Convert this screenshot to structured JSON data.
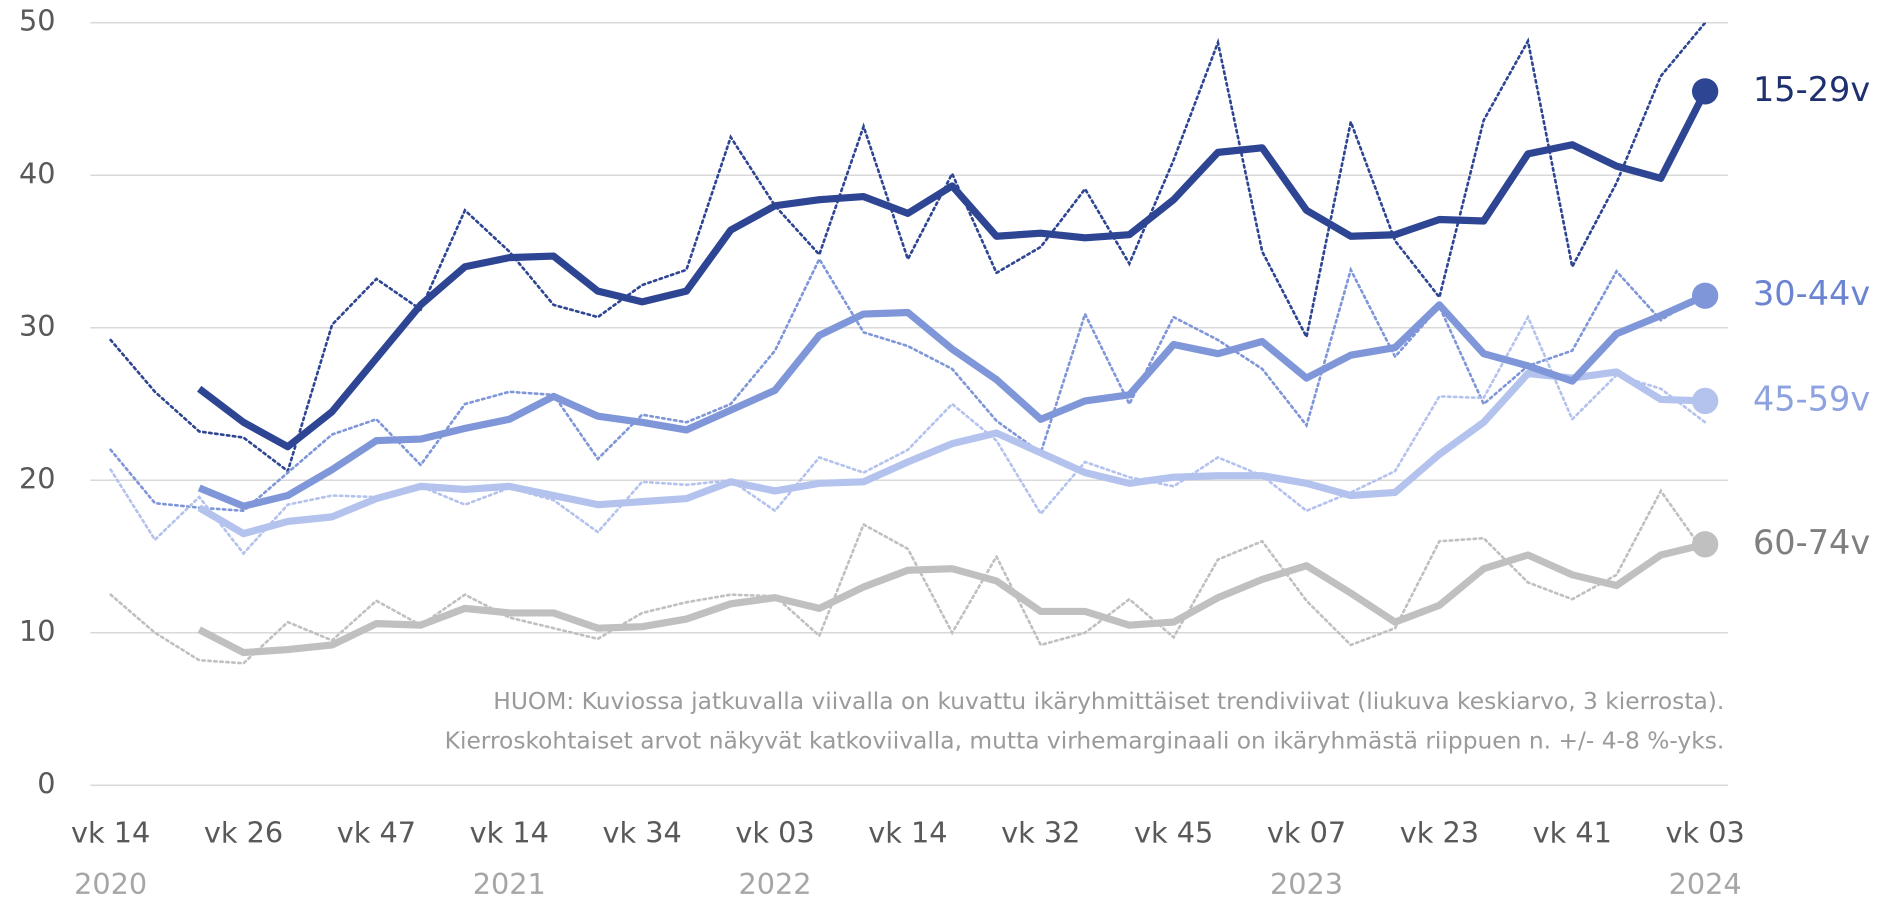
{
  "chart_data": {
    "type": "line",
    "categories": [
      "vk 14",
      null,
      null,
      "vk 26",
      null,
      null,
      "vk 47",
      null,
      null,
      "vk 14",
      null,
      null,
      "vk 34",
      null,
      null,
      "vk 03",
      null,
      null,
      "vk 14",
      null,
      null,
      "vk 32",
      null,
      null,
      "vk 45",
      null,
      null,
      "vk 07",
      null,
      null,
      "vk 23",
      null,
      null,
      "vk 41",
      null,
      null,
      "vk 03"
    ],
    "category_groups": [
      "2020",
      null,
      null,
      null,
      null,
      null,
      null,
      null,
      null,
      "2021",
      null,
      null,
      null,
      null,
      null,
      "2022",
      null,
      null,
      null,
      null,
      null,
      null,
      null,
      null,
      null,
      null,
      null,
      "2023",
      null,
      null,
      null,
      null,
      null,
      null,
      null,
      null,
      "2024"
    ],
    "ylim": [
      0,
      50
    ],
    "yticks": [
      0,
      10,
      20,
      30,
      40,
      50
    ],
    "grid": true,
    "note": [
      "HUOM: Kuviossa jatkuvalla viivalla on kuvattu ikäryhmittäiset trendiviivat (liukuva keskiarvo, 3 kierrosta).",
      "Kierroskohtaiset arvot näkyvät katkoviivalla, mutta virhemarginaali on ikäryhmästä riippuen n. +/- 4-8 %-yks."
    ],
    "series": [
      {
        "name": "15-29v",
        "color": "#2e4593",
        "label_color": "#1f3070",
        "values": [
          null,
          null,
          26,
          23.8,
          22.2,
          24.5,
          28,
          31.5,
          34,
          34.6,
          34.7,
          32.4,
          31.7,
          32.4,
          36.4,
          38,
          38.4,
          38.6,
          37.5,
          39.3,
          36,
          36.2,
          35.9,
          36.1,
          38.4,
          41.5,
          41.8,
          37.7,
          36,
          36.1,
          37.1,
          37,
          41.4,
          42,
          40.6,
          39.8,
          45.5
        ],
        "round_values": [
          29.2,
          25.8,
          23.2,
          22.8,
          20.6,
          30.2,
          33.2,
          31.2,
          37.7,
          35,
          31.5,
          30.7,
          32.8,
          33.8,
          42.5,
          38,
          34.8,
          43.2,
          34.5,
          40.1,
          33.6,
          35.3,
          39.1,
          34.2,
          41,
          48.7,
          35,
          29.4,
          43.5,
          35.7,
          32,
          43.6,
          48.8,
          34,
          39.5,
          46.5,
          50
        ]
      },
      {
        "name": "30-44v",
        "color": "#7f96d8",
        "label_color": "#6b84d2",
        "values": [
          null,
          null,
          19.5,
          18.3,
          19,
          20.7,
          22.6,
          22.7,
          23.4,
          24,
          25.5,
          24.2,
          23.8,
          23.3,
          24.6,
          25.9,
          29.5,
          30.9,
          31,
          28.6,
          26.6,
          24,
          25.2,
          25.6,
          28.9,
          28.3,
          29.1,
          26.7,
          28.2,
          28.7,
          31.5,
          28.3,
          27.5,
          26.5,
          29.6,
          30.8,
          32.1
        ],
        "round_values": [
          22,
          18.5,
          18.2,
          18,
          20.5,
          23,
          24,
          21,
          25,
          25.8,
          25.6,
          21.4,
          24.3,
          23.8,
          25,
          28.5,
          34.5,
          29.7,
          28.8,
          27.3,
          23.9,
          21.8,
          30.9,
          25,
          30.7,
          29.2,
          27.3,
          23.6,
          33.8,
          28.1,
          31.4,
          25,
          27.5,
          28.5,
          33.7,
          30.5,
          32.3
        ]
      },
      {
        "name": "45-59v",
        "color": "#b4c2ee",
        "label_color": "#8ea2e0",
        "values": [
          null,
          null,
          18.2,
          16.5,
          17.3,
          17.6,
          18.8,
          19.6,
          19.4,
          19.6,
          19,
          18.4,
          18.6,
          18.8,
          19.9,
          19.3,
          19.8,
          19.9,
          21.2,
          22.4,
          23.1,
          21.8,
          20.5,
          19.8,
          20.2,
          20.3,
          20.3,
          19.8,
          19,
          19.2,
          21.7,
          23.8,
          27,
          26.7,
          27.1,
          25.3,
          25.2
        ],
        "round_values": [
          20.7,
          16.1,
          18.9,
          15.2,
          18.4,
          19,
          18.9,
          19.6,
          18.4,
          19.5,
          18.7,
          16.6,
          19.9,
          19.7,
          20,
          18,
          21.5,
          20.5,
          22,
          25,
          22.6,
          17.8,
          21.2,
          20.2,
          19.6,
          21.5,
          20.3,
          18,
          19.2,
          20.6,
          25.5,
          25.4,
          30.7,
          24,
          26.9,
          26,
          23.8
        ]
      },
      {
        "name": "60-74v",
        "color": "#c0c0c0",
        "label_color": "#7f7f7f",
        "values": [
          null,
          null,
          10.2,
          8.7,
          8.9,
          9.2,
          10.6,
          10.5,
          11.6,
          11.3,
          11.3,
          10.3,
          10.4,
          10.9,
          11.9,
          12.3,
          11.6,
          13,
          14.1,
          14.2,
          13.4,
          11.4,
          11.4,
          10.5,
          10.7,
          12.3,
          13.5,
          14.4,
          12.6,
          10.7,
          11.8,
          14.2,
          15.1,
          13.8,
          13.1,
          15.1,
          15.8
        ],
        "round_values": [
          12.5,
          10,
          8.2,
          8,
          10.7,
          9.5,
          12.1,
          10.5,
          12.5,
          11,
          10.3,
          9.6,
          11.3,
          12,
          12.5,
          12.4,
          9.8,
          17.1,
          15.5,
          10,
          15,
          9.2,
          10,
          12.2,
          9.7,
          14.8,
          16,
          12.1,
          9.2,
          10.3,
          16,
          16.2,
          13.3,
          12.2,
          13.8,
          19.3,
          15.2
        ]
      }
    ]
  }
}
